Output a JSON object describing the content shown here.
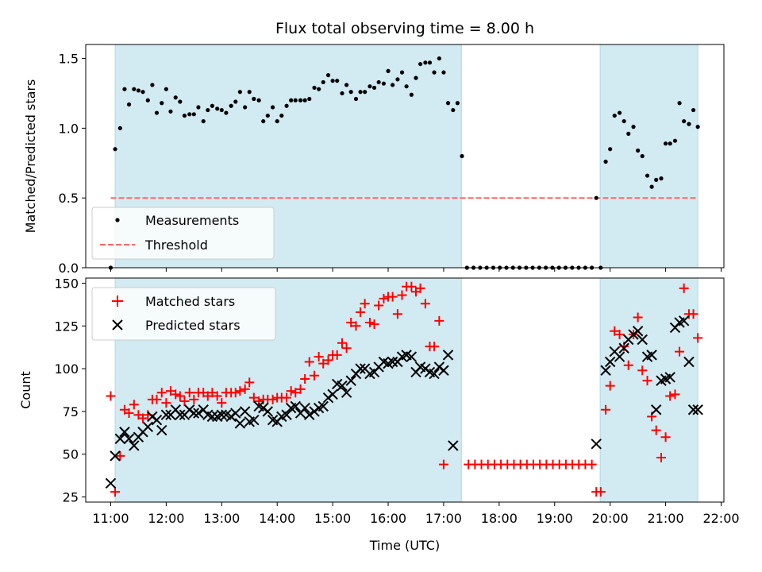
{
  "title": "Flux total observing time = 8.00 h",
  "xlabel": "Time (UTC)",
  "xticks": [
    {
      "label": "11:00",
      "t": 11.0
    },
    {
      "label": "12:00",
      "t": 12.0
    },
    {
      "label": "13:00",
      "t": 13.0
    },
    {
      "label": "14:00",
      "t": 14.0
    },
    {
      "label": "15:00",
      "t": 15.0
    },
    {
      "label": "16:00",
      "t": 16.0
    },
    {
      "label": "17:00",
      "t": 17.0
    },
    {
      "label": "18:00",
      "t": 18.0
    },
    {
      "label": "19:00",
      "t": 19.0
    },
    {
      "label": "20:00",
      "t": 20.0
    },
    {
      "label": "21:00",
      "t": 21.0
    },
    {
      "label": "22:00",
      "t": 22.0
    }
  ],
  "colors": {
    "shade": "#add8e6",
    "measurements": "#000000",
    "threshold": "#ff6666",
    "matched": "#ff0000",
    "predicted": "#000000"
  },
  "chart_data": [
    {
      "type": "scatter",
      "ylabel": "Matched/Predicted stars",
      "xlim": [
        10.55,
        22.05
      ],
      "ylim": [
        0,
        1.6
      ],
      "yticks": [
        "0.0",
        "0.5",
        "1.0",
        "1.5"
      ],
      "ytick_values": [
        0,
        0.5,
        1.0,
        1.5
      ],
      "shaded_intervals": [
        [
          11.08,
          17.32
        ],
        [
          19.82,
          21.58
        ]
      ],
      "threshold": {
        "name": "Threshold",
        "y": 0.5,
        "x_range": [
          11.0,
          21.58
        ]
      },
      "legend": {
        "placement": "lower-left",
        "entries": [
          "Measurements",
          "Threshold"
        ]
      },
      "series": [
        {
          "name": "Measurements",
          "marker": "dot",
          "x": [],
          "y": []
        }
      ]
    },
    {
      "type": "scatter",
      "ylabel": "Count",
      "xlim": [
        10.55,
        22.05
      ],
      "ylim": [
        22,
        153
      ],
      "yticks": [
        "25",
        "50",
        "75",
        "100",
        "125",
        "150"
      ],
      "ytick_values": [
        25,
        50,
        75,
        100,
        125,
        150
      ],
      "shaded_intervals": [
        [
          11.08,
          17.32
        ],
        [
          19.82,
          21.58
        ]
      ],
      "legend": {
        "placement": "top-left",
        "entries": [
          "Matched stars",
          "Predicted stars"
        ]
      },
      "series": [
        {
          "name": "Matched stars",
          "marker": "plus",
          "x": [],
          "y": []
        },
        {
          "name": "Predicted stars",
          "marker": "x",
          "x": [],
          "y": []
        }
      ]
    }
  ]
}
